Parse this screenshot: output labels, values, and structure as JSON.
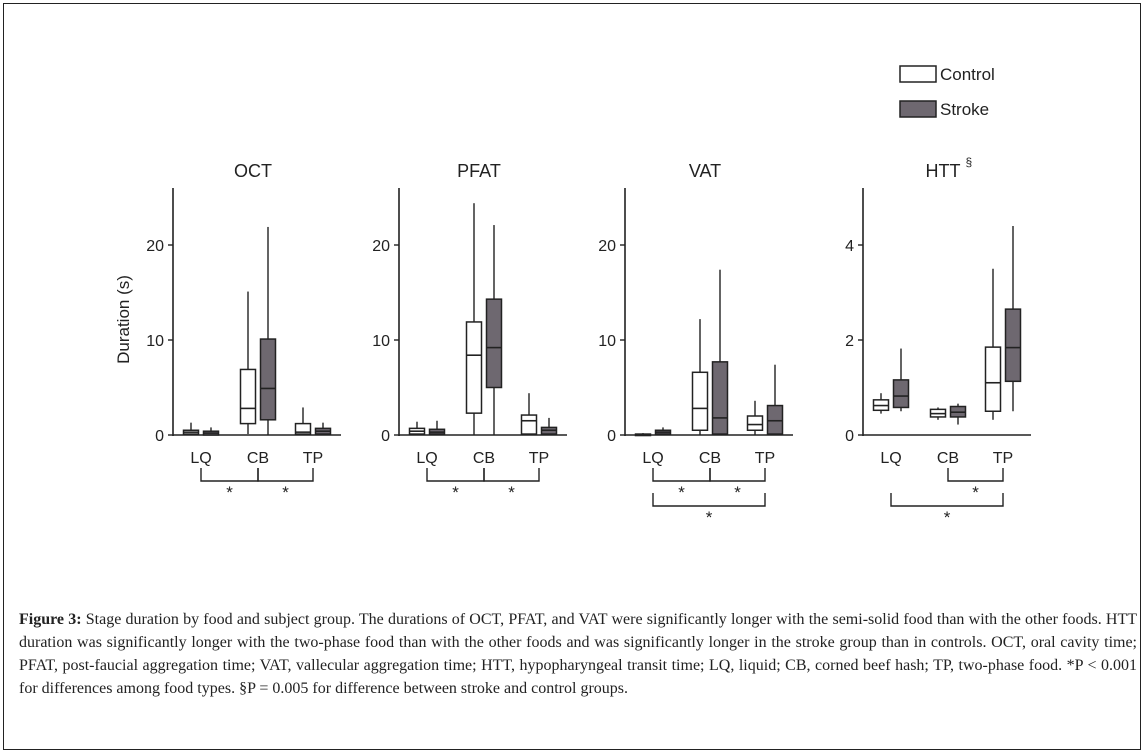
{
  "caption": {
    "label": "Figure 3:",
    "text": " Stage duration by food and subject group. The durations of OCT, PFAT, and VAT were significantly longer with the semi-solid food than with the other foods. HTT duration was significantly longer with the two-phase food than with the other foods and was significantly longer in the stroke group than in controls. OCT, oral cavity time; PFAT, post-faucial aggregation time; VAT, vallecular aggregation time; HTT, hypopharyngeal transit time; LQ, liquid; CB, corned beef hash; TP, two-phase food. *P < 0.001 for differences among food types. §P = 0.005 for difference between stroke and control groups."
  },
  "legend": [
    {
      "label": "Control",
      "color": "#ffffff"
    },
    {
      "label": "Stroke",
      "color": "#6e6870"
    }
  ],
  "colors": {
    "control": "#ffffff",
    "stroke": "#6e6870",
    "ink": "#222222"
  },
  "chart_data": [
    {
      "type": "box",
      "title": "OCT",
      "ylabel": "Duration (s)",
      "ylim": [
        0,
        26
      ],
      "yticks": [
        0,
        10,
        20
      ],
      "categories": [
        "LQ",
        "CB",
        "TP"
      ],
      "series": [
        {
          "name": "Control",
          "boxes": [
            {
              "min": 0,
              "q1": 0.1,
              "median": 0.3,
              "q3": 0.5,
              "max": 1.3
            },
            {
              "min": 0.1,
              "q1": 1.2,
              "median": 2.8,
              "q3": 6.9,
              "max": 15.1
            },
            {
              "min": 0,
              "q1": 0.1,
              "median": 0.3,
              "q3": 1.2,
              "max": 2.9
            }
          ]
        },
        {
          "name": "Stroke",
          "boxes": [
            {
              "min": 0,
              "q1": 0,
              "median": 0.2,
              "q3": 0.4,
              "max": 0.8
            },
            {
              "min": 0,
              "q1": 1.6,
              "median": 4.9,
              "q3": 10.1,
              "max": 21.9
            },
            {
              "min": 0,
              "q1": 0.1,
              "median": 0.4,
              "q3": 0.7,
              "max": 1.3
            }
          ]
        }
      ],
      "significance": [
        {
          "from": 0,
          "to": 1,
          "label": "*",
          "level": 1
        },
        {
          "from": 1,
          "to": 2,
          "label": "*",
          "level": 1
        }
      ]
    },
    {
      "type": "box",
      "title": "PFAT",
      "ylabel": "",
      "ylim": [
        0,
        26
      ],
      "yticks": [
        0,
        10,
        20
      ],
      "categories": [
        "LQ",
        "CB",
        "TP"
      ],
      "series": [
        {
          "name": "Control",
          "boxes": [
            {
              "min": 0,
              "q1": 0.1,
              "median": 0.4,
              "q3": 0.7,
              "max": 1.4
            },
            {
              "min": 0,
              "q1": 2.3,
              "median": 8.4,
              "q3": 11.9,
              "max": 24.4
            },
            {
              "min": 0,
              "q1": 0.1,
              "median": 1.5,
              "q3": 2.1,
              "max": 4.4
            }
          ]
        },
        {
          "name": "Stroke",
          "boxes": [
            {
              "min": 0,
              "q1": 0.1,
              "median": 0.3,
              "q3": 0.6,
              "max": 1.5
            },
            {
              "min": 0,
              "q1": 5.0,
              "median": 9.2,
              "q3": 14.3,
              "max": 22.1
            },
            {
              "min": 0,
              "q1": 0.1,
              "median": 0.5,
              "q3": 0.8,
              "max": 1.8
            }
          ]
        }
      ],
      "significance": [
        {
          "from": 0,
          "to": 1,
          "label": "*",
          "level": 1
        },
        {
          "from": 1,
          "to": 2,
          "label": "*",
          "level": 1
        }
      ]
    },
    {
      "type": "box",
      "title": "VAT",
      "ylabel": "",
      "ylim": [
        0,
        26
      ],
      "yticks": [
        0,
        10,
        20
      ],
      "categories": [
        "LQ",
        "CB",
        "TP"
      ],
      "series": [
        {
          "name": "Control",
          "boxes": [
            {
              "min": 0,
              "q1": 0,
              "median": 0.05,
              "q3": 0.1,
              "max": 0.2
            },
            {
              "min": 0,
              "q1": 0.5,
              "median": 2.8,
              "q3": 6.6,
              "max": 12.2
            },
            {
              "min": 0,
              "q1": 0.5,
              "median": 1.1,
              "q3": 2.0,
              "max": 3.6
            }
          ]
        },
        {
          "name": "Stroke",
          "boxes": [
            {
              "min": 0,
              "q1": 0.1,
              "median": 0.3,
              "q3": 0.5,
              "max": 0.8
            },
            {
              "min": 0,
              "q1": 0.1,
              "median": 1.8,
              "q3": 7.7,
              "max": 17.4
            },
            {
              "min": 0,
              "q1": 0.1,
              "median": 1.5,
              "q3": 3.1,
              "max": 7.4
            }
          ]
        }
      ],
      "significance": [
        {
          "from": 0,
          "to": 1,
          "label": "*",
          "level": 1
        },
        {
          "from": 1,
          "to": 2,
          "label": "*",
          "level": 1
        },
        {
          "from": 0,
          "to": 2,
          "label": "*",
          "level": 2
        }
      ]
    },
    {
      "type": "box",
      "title": "HTT",
      "title_superscript": "§",
      "ylabel": "",
      "ylim": [
        0,
        5.2
      ],
      "yticks": [
        0,
        2,
        4
      ],
      "categories": [
        "LQ",
        "CB",
        "TP"
      ],
      "series": [
        {
          "name": "Control",
          "boxes": [
            {
              "min": 0.45,
              "q1": 0.52,
              "median": 0.62,
              "q3": 0.74,
              "max": 0.88
            },
            {
              "min": 0.32,
              "q1": 0.38,
              "median": 0.45,
              "q3": 0.54,
              "max": 0.58
            },
            {
              "min": 0.32,
              "q1": 0.5,
              "median": 1.1,
              "q3": 1.85,
              "max": 3.5
            }
          ]
        },
        {
          "name": "Stroke",
          "boxes": [
            {
              "min": 0.5,
              "q1": 0.58,
              "median": 0.82,
              "q3": 1.16,
              "max": 1.82
            },
            {
              "min": 0.22,
              "q1": 0.38,
              "median": 0.48,
              "q3": 0.6,
              "max": 0.66
            },
            {
              "min": 0.5,
              "q1": 1.13,
              "median": 1.84,
              "q3": 2.65,
              "max": 4.4
            }
          ]
        }
      ],
      "significance": [
        {
          "from": 1,
          "to": 2,
          "label": "*",
          "level": 1
        },
        {
          "from": 0,
          "to": 2,
          "label": "*",
          "level": 2
        }
      ]
    }
  ]
}
